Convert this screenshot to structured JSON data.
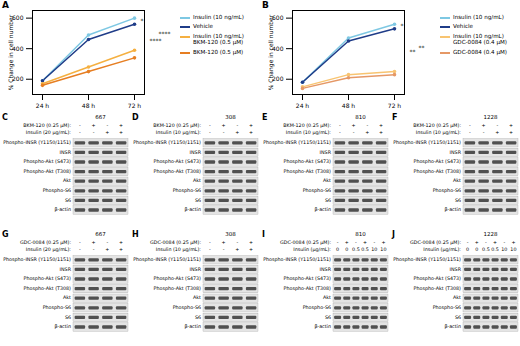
{
  "chart_data": [
    {
      "type": "line",
      "title": "A",
      "y_label": "% Change in cell number",
      "categories": [
        "24 h",
        "48 h",
        "72 h"
      ],
      "ylim": [
        100,
        650
      ],
      "yticks": [
        200,
        400,
        600
      ],
      "series": [
        {
          "name": "Insulin (10 ng/mL)",
          "color": "#7ec8e3",
          "values": [
            190,
            490,
            600
          ]
        },
        {
          "name": "Vehicle",
          "color": "#1f3c88",
          "values": [
            190,
            460,
            560
          ]
        },
        {
          "name": "Insulin (10 ng/mL) BKM-120 (0.5 µM)",
          "color": "#f5b041",
          "values": [
            170,
            280,
            390
          ]
        },
        {
          "name": "BKM-120 (0.5 µM)",
          "color": "#e67e22",
          "values": [
            160,
            250,
            340
          ]
        }
      ],
      "annotations": [
        {
          "text": "*",
          "between": [
            "Insulin (10 ng/mL)",
            "Vehicle"
          ]
        },
        {
          "text": "****",
          "between": [
            "Vehicle",
            "BKM-120 (0.5 µM)"
          ]
        },
        {
          "text": "****",
          "between": [
            "Insulin (10 ng/mL)",
            "Insulin (10 ng/mL) BKM-120 (0.5 µM)"
          ]
        }
      ]
    },
    {
      "type": "line",
      "title": "B",
      "y_label": "% Change in cell number",
      "categories": [
        "24 h",
        "48 h",
        "72 h"
      ],
      "ylim": [
        100,
        650
      ],
      "yticks": [
        200,
        400,
        600
      ],
      "series": [
        {
          "name": "Insulin (10 ng/mL)",
          "color": "#7ec8e3",
          "values": [
            180,
            470,
            560
          ]
        },
        {
          "name": "Vehicle",
          "color": "#1f3c88",
          "values": [
            180,
            450,
            530
          ]
        },
        {
          "name": "Insulin (10 ng/mL) GDC-0084 (0.4 µM)",
          "color": "#f8c471",
          "values": [
            150,
            230,
            250
          ]
        },
        {
          "name": "GDC-0084 (0.4 µM)",
          "color": "#e59866",
          "values": [
            140,
            210,
            230
          ]
        }
      ],
      "annotations": [
        {
          "text": "*",
          "between": [
            "Insulin (10 ng/mL)",
            "Vehicle"
          ]
        },
        {
          "text": "**",
          "between": [
            "Vehicle",
            "GDC-0084 (0.4 µM)"
          ]
        },
        {
          "text": "**",
          "between": [
            "Insulin (10 ng/mL)",
            "Insulin (10 ng/mL) GDC-0084 (0.4 µM)"
          ]
        }
      ]
    }
  ],
  "blots": [
    {
      "panel": "C",
      "cell_line": "667",
      "treatments": [
        {
          "label": "BKM-120 (0.25 µM):",
          "lanes": [
            "-",
            "+",
            "-",
            "+"
          ]
        },
        {
          "label": "Insulin (20 µg/mL):",
          "lanes": [
            "-",
            "-",
            "+",
            "+"
          ]
        }
      ]
    },
    {
      "panel": "D",
      "cell_line": "308",
      "treatments": [
        {
          "label": "BKM-120 (0.25 µM):",
          "lanes": [
            "-",
            "+",
            "-",
            "+"
          ]
        },
        {
          "label": "Insulin (10 µg/mL):",
          "lanes": [
            "-",
            "-",
            "+",
            "+"
          ]
        }
      ]
    },
    {
      "panel": "E",
      "cell_line": "810",
      "treatments": [
        {
          "label": "BKM-120 (0.25 µM):",
          "lanes": [
            "-",
            "+",
            "-",
            "+"
          ]
        },
        {
          "label": "Insulin (10 µg/mL):",
          "lanes": [
            "-",
            "-",
            "+",
            "+"
          ]
        }
      ]
    },
    {
      "panel": "F",
      "cell_line": "1228",
      "treatments": [
        {
          "label": "BKM-120 (0.25 µM):",
          "lanes": [
            "-",
            "+",
            "-",
            "+"
          ]
        },
        {
          "label": "Insulin (10 µg/mL):",
          "lanes": [
            "-",
            "-",
            "+",
            "+"
          ]
        }
      ]
    },
    {
      "panel": "G",
      "cell_line": "667",
      "treatments": [
        {
          "label": "GDC-0084 (0.25 µM):",
          "lanes": [
            "-",
            "+",
            "-",
            "+"
          ]
        },
        {
          "label": "Insulin (20 µg/mL):",
          "lanes": [
            "-",
            "-",
            "+",
            "+"
          ]
        }
      ]
    },
    {
      "panel": "H",
      "cell_line": "308",
      "treatments": [
        {
          "label": "GDC-0084 (0.25 µM):",
          "lanes": [
            "-",
            "+",
            "-",
            "+"
          ]
        },
        {
          "label": "Insulin (10 µg/mL):",
          "lanes": [
            "-",
            "-",
            "+",
            "+"
          ]
        }
      ]
    },
    {
      "panel": "I",
      "cell_line": "810",
      "treatments": [
        {
          "label": "GDC-0084 (0.25 µM):",
          "lanes": [
            "-",
            "+",
            "-",
            "+",
            "-",
            "+"
          ]
        },
        {
          "label": "Insulin (µg/mL):",
          "lanes": [
            "0",
            "0",
            "0.5",
            "0.5",
            "10",
            "10"
          ]
        }
      ]
    },
    {
      "panel": "J",
      "cell_line": "1228",
      "treatments": [
        {
          "label": "GDC-0084 (0.25 µM):",
          "lanes": [
            "-",
            "+",
            "-",
            "+",
            "-",
            "+"
          ]
        },
        {
          "label": "Insulin (µg/mL):",
          "lanes": [
            "0",
            "0",
            "0.5",
            "0.5",
            "10",
            "10"
          ]
        }
      ]
    }
  ],
  "blot_rows": [
    "Phospho-INSR (Y1150/1151)",
    "INSR",
    "Phospho-Akt (S473)",
    "Phospho-Akt (T308)",
    "Akt",
    "Phospho-S6",
    "S6",
    "β-actin"
  ]
}
